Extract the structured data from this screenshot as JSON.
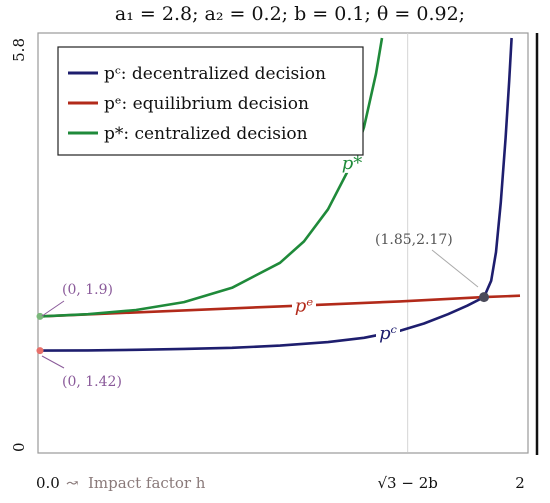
{
  "chart_data": {
    "type": "line",
    "title": "a₁ = 2.8; a₂ = 0.2; b = 0.1; θ = 0.92;",
    "xlabel": "Impact factor h",
    "x_start_label": "0.0",
    "x_arrow": "↝",
    "ylabel": "",
    "xlim": [
      0,
      2
    ],
    "ylim": [
      0,
      5.8
    ],
    "x_ticks": [
      {
        "value": 0,
        "label": ""
      },
      {
        "value": 1.532,
        "label": "√3 − 2b"
      },
      {
        "value": 2,
        "label": "2"
      }
    ],
    "y_ticks": [
      {
        "value": 0,
        "label": "0"
      },
      {
        "value": 5.8,
        "label": "5.8"
      }
    ],
    "grid": true,
    "legend_position": "top-left",
    "series": [
      {
        "name": "pᶜ: decentralized decision",
        "color": "#1e1e6e",
        "curve_label": "pᶜ",
        "points": [
          [
            0,
            1.42
          ],
          [
            0.2,
            1.424
          ],
          [
            0.4,
            1.432
          ],
          [
            0.6,
            1.444
          ],
          [
            0.8,
            1.46
          ],
          [
            1.0,
            1.49
          ],
          [
            1.2,
            1.54
          ],
          [
            1.35,
            1.6
          ],
          [
            1.5,
            1.7
          ],
          [
            1.6,
            1.8
          ],
          [
            1.7,
            1.93
          ],
          [
            1.78,
            2.05
          ],
          [
            1.85,
            2.17
          ],
          [
            1.88,
            2.4
          ],
          [
            1.9,
            2.8
          ],
          [
            1.92,
            3.5
          ],
          [
            1.94,
            4.4
          ],
          [
            1.955,
            5.2
          ],
          [
            1.965,
            5.8
          ]
        ]
      },
      {
        "name": "pᵉ: equilibrium decision",
        "color": "#b22a1a",
        "curve_label": "pᵉ",
        "points": [
          [
            0,
            1.9
          ],
          [
            0.5,
            1.97
          ],
          [
            1.0,
            2.04
          ],
          [
            1.5,
            2.11
          ],
          [
            1.85,
            2.17
          ],
          [
            2.0,
            2.19
          ]
        ]
      },
      {
        "name": "p*: centralized decision",
        "color": "#1f8a3a",
        "curve_label": "p*",
        "points": [
          [
            0,
            1.9
          ],
          [
            0.2,
            1.93
          ],
          [
            0.4,
            1.99
          ],
          [
            0.6,
            2.1
          ],
          [
            0.8,
            2.3
          ],
          [
            1.0,
            2.65
          ],
          [
            1.1,
            2.95
          ],
          [
            1.2,
            3.4
          ],
          [
            1.3,
            4.05
          ],
          [
            1.35,
            4.55
          ],
          [
            1.4,
            5.3
          ],
          [
            1.425,
            5.8
          ]
        ]
      }
    ],
    "annotations": [
      {
        "text": "(0, 1.9)",
        "x": 0,
        "y": 1.9,
        "color": "#8a5a9a"
      },
      {
        "text": "(0, 1.42)",
        "x": 0,
        "y": 1.42,
        "color": "#8a5a9a"
      },
      {
        "text": "(1.85,2.17)",
        "x": 1.85,
        "y": 2.17,
        "color": "#555555"
      }
    ]
  }
}
